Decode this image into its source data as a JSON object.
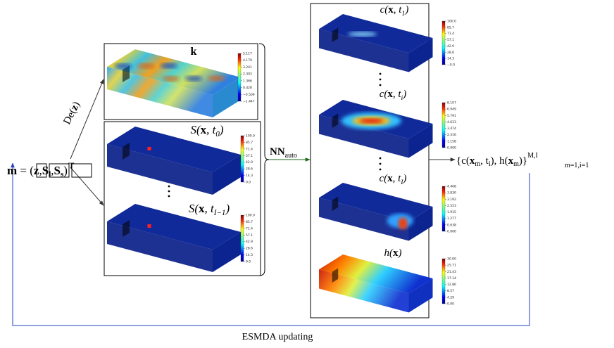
{
  "input": [
    "m",
    " = (",
    "z",
    ",",
    "S",
    "l",
    ",",
    "S",
    "s",
    ")",
    "⊤"
  ],
  "decoder": [
    "De(",
    "z",
    ")"
  ],
  "network": [
    "NN",
    "auto"
  ],
  "output": [
    "{c(",
    "x",
    "m",
    ", t",
    "i",
    "), h(",
    "x",
    "m",
    ")}",
    "M,I",
    "m=1,i=1"
  ],
  "loop": "ESMDA updating",
  "panels": [
    {
      "title": [
        "k"
      ],
      "colorbar": [
        "5.117",
        "4.179",
        "3.241",
        "2.303",
        "1.366",
        "0.428",
        "−0.509",
        "−1.447"
      ]
    },
    {
      "title": [
        "S(",
        "x",
        ", t",
        "0",
        ")"
      ],
      "colorbar": [
        "100.0",
        "85.7",
        "71.4",
        "57.1",
        "42.9",
        "28.6",
        "14.3",
        "0.0"
      ]
    },
    {
      "title": [
        "S(",
        "x",
        ", t",
        "I−1",
        ")"
      ],
      "colorbar": [
        "100.0",
        "85.7",
        "71.4",
        "57.1",
        "42.9",
        "28.6",
        "14.3",
        "0.0"
      ]
    },
    {
      "title": [
        "c(",
        "x",
        ", t",
        "1",
        ")"
      ],
      "colorbar": [
        "100.0",
        "85.7",
        "71.4",
        "57.1",
        "42.9",
        "28.6",
        "14.3",
        "−0.0"
      ]
    },
    {
      "title": [
        "c(",
        "x",
        ", t",
        "i",
        ")"
      ],
      "colorbar": [
        "8.107",
        "6.949",
        "5.791",
        "4.633",
        "3.474",
        "2.316",
        "1.158",
        "0.000"
      ]
    },
    {
      "title": [
        "c(",
        "x",
        ", t",
        "I",
        ")"
      ],
      "colorbar": [
        "4.468",
        "3.830",
        "3.192",
        "2.553",
        "1.915",
        "1.277",
        "0.638",
        "0.000"
      ]
    },
    {
      "title": [
        "h(",
        "x",
        ")"
      ],
      "colorbar": [
        "30.00",
        "25.71",
        "21.43",
        "17.14",
        "12.86",
        "8.57",
        "4.29",
        "0.00"
      ]
    }
  ]
}
